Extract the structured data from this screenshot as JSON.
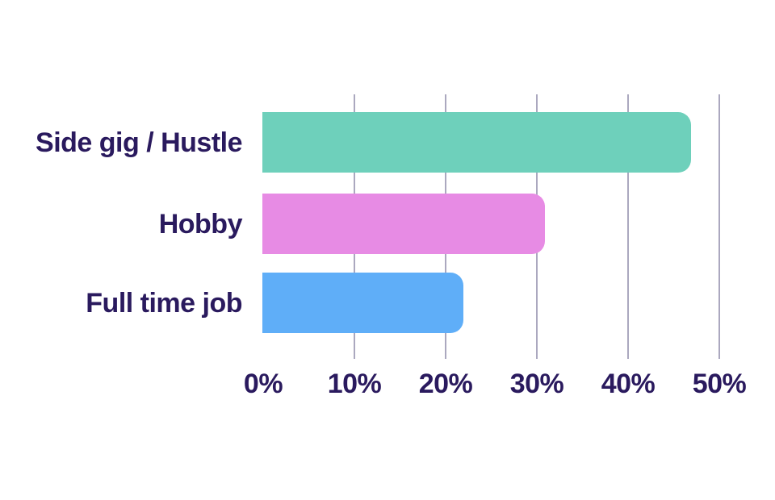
{
  "colors": {
    "background": "#ffffff",
    "text": "#2a1a5e",
    "gridline": "#aba8bf"
  },
  "chart_data": {
    "type": "bar",
    "orientation": "horizontal",
    "title": "",
    "xlabel": "",
    "ylabel": "",
    "categories": [
      "Side gig / Hustle",
      "Hobby",
      "Full time job"
    ],
    "values": [
      47,
      31,
      22
    ],
    "value_unit": "%",
    "bar_colors": [
      "#6ed0bb",
      "#e78be4",
      "#5faef8"
    ],
    "xlim": [
      0,
      50
    ],
    "x_tick_values": [
      0,
      10,
      20,
      30,
      40,
      50
    ],
    "x_tick_labels": [
      "0%",
      "10%",
      "20%",
      "30%",
      "40%",
      "50%"
    ],
    "grid": "vertical gridlines at 10,20,30,40,50; none at 0",
    "legend": "none"
  }
}
